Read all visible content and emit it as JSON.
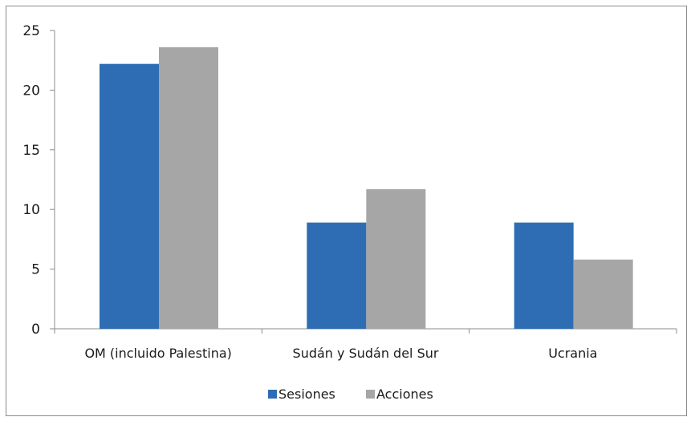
{
  "chart_data": {
    "type": "bar",
    "categories": [
      "OM (incluido Palestina)",
      "Sudán y Sudán del Sur",
      "Ucrania"
    ],
    "series": [
      {
        "name": "Sesiones",
        "values": [
          22.2,
          8.9,
          8.9
        ],
        "color": "#2e6db4"
      },
      {
        "name": "Acciones",
        "values": [
          23.6,
          11.7,
          5.8
        ],
        "color": "#a6a6a6"
      }
    ],
    "yticks": [
      "0",
      "5",
      "10",
      "15",
      "20",
      "25"
    ],
    "ylim": [
      0,
      25
    ],
    "grid": false,
    "legend_position": "bottom"
  }
}
